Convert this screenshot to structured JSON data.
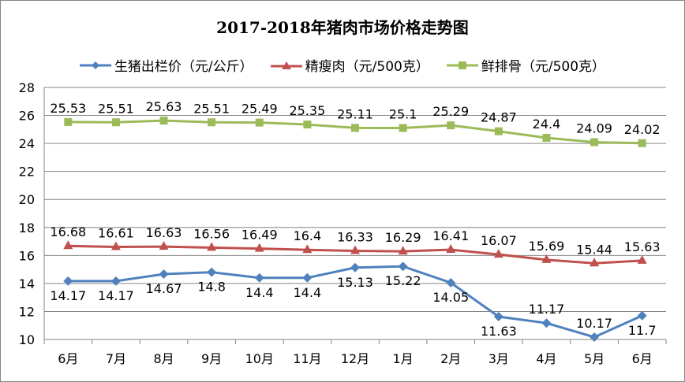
{
  "chart_data": {
    "type": "line",
    "title": "2017-2018年猪肉市场价格走势图",
    "categories": [
      "6月",
      "7月",
      "8月",
      "9月",
      "10月",
      "11月",
      "12月",
      "1月",
      "2月",
      "3月",
      "4月",
      "5月",
      "6月"
    ],
    "ylim": [
      10,
      28
    ],
    "yticks": [
      10,
      12,
      14,
      16,
      18,
      20,
      22,
      24,
      26,
      28
    ],
    "grid": true,
    "legend_position": "top",
    "series": [
      {
        "name": "生猪出栏价（元/公斤）",
        "color": "#4F81BD",
        "marker": "diamond",
        "label_pos": "above",
        "values": [
          14.17,
          14.17,
          14.67,
          14.8,
          14.4,
          14.4,
          15.13,
          15.22,
          14.05,
          11.63,
          11.17,
          10.17,
          11.7
        ]
      },
      {
        "name": "精瘦肉（元/500克）",
        "color": "#C0504D",
        "marker": "triangle",
        "label_pos": "below",
        "values": [
          16.68,
          16.61,
          16.63,
          16.56,
          16.49,
          16.4,
          16.33,
          16.29,
          16.41,
          16.07,
          15.69,
          15.44,
          15.63
        ]
      },
      {
        "name": "鲜排骨（元/500克）",
        "color": "#9BBB59",
        "marker": "square",
        "label_pos": "above",
        "values": [
          25.53,
          25.51,
          25.63,
          25.51,
          25.49,
          25.35,
          25.11,
          25.1,
          25.29,
          24.87,
          24.4,
          24.09,
          24.02
        ]
      }
    ]
  }
}
